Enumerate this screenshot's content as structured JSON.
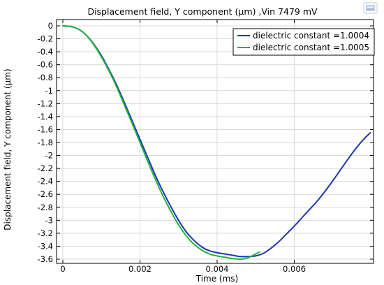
{
  "chart_data": {
    "type": "line",
    "title": "Displacement field, Y component (µm) ,Vin 7479 mV",
    "xlabel": "Time (ms)",
    "ylabel": "Displacement field, Y component (µm)",
    "xlim": [
      0,
      0.008
    ],
    "ylim": [
      -3.6,
      0.0
    ],
    "xticks": [
      0,
      0.002,
      0.004,
      0.006
    ],
    "xtick_labels": [
      "0",
      "0.002",
      "0.004",
      "0.006"
    ],
    "yticks": [
      0,
      -0.2,
      -0.4,
      -0.6,
      -0.8,
      -1,
      -1.2,
      -1.4,
      -1.6,
      -1.8,
      -2,
      -2.2,
      -2.4,
      -2.6,
      -2.8,
      -3,
      -3.2,
      -3.4,
      -3.6
    ],
    "ytick_labels": [
      "0",
      "-0.2",
      "-0.4",
      "-0.6",
      "-0.8",
      "-1",
      "-1.2",
      "-1.4",
      "-1.6",
      "-1.8",
      "-2",
      "-2.2",
      "-2.4",
      "-2.6",
      "-2.8",
      "-3",
      "-3.2",
      "-3.4",
      "-3.6"
    ],
    "grid": true,
    "legend_position": "top-right",
    "series": [
      {
        "name": "dielectric constant =1.0004",
        "color": "#1f35b4",
        "x": [
          0,
          0.0002,
          0.0004,
          0.0006,
          0.0008,
          0.001,
          0.0012,
          0.0014,
          0.0016,
          0.0018,
          0.002,
          0.0022,
          0.0024,
          0.0026,
          0.0028,
          0.003,
          0.0032,
          0.0034,
          0.0036,
          0.0038,
          0.004,
          0.0042,
          0.0044,
          0.0046,
          0.0048,
          0.005,
          0.0052,
          0.0054,
          0.0056,
          0.0058,
          0.006,
          0.0062,
          0.0064,
          0.0066,
          0.0068,
          0.007,
          0.0072,
          0.0074,
          0.0076,
          0.0078,
          0.00797
        ],
        "y": [
          0,
          -0.01,
          -0.05,
          -0.14,
          -0.28,
          -0.46,
          -0.68,
          -0.92,
          -1.19,
          -1.47,
          -1.75,
          -2.03,
          -2.31,
          -2.56,
          -2.79,
          -3.0,
          -3.18,
          -3.31,
          -3.41,
          -3.47,
          -3.5,
          -3.52,
          -3.54,
          -3.56,
          -3.56,
          -3.55,
          -3.51,
          -3.43,
          -3.33,
          -3.21,
          -3.09,
          -2.96,
          -2.83,
          -2.7,
          -2.55,
          -2.39,
          -2.22,
          -2.05,
          -1.89,
          -1.75,
          -1.65
        ]
      },
      {
        "name": "dielectric constant =1.0005",
        "color": "#1fb53a",
        "x": [
          0,
          0.0002,
          0.0004,
          0.0006,
          0.0008,
          0.001,
          0.0012,
          0.0014,
          0.0016,
          0.0018,
          0.002,
          0.0022,
          0.0024,
          0.0026,
          0.0028,
          0.003,
          0.0032,
          0.0034,
          0.0036,
          0.0038,
          0.004,
          0.0042,
          0.0044,
          0.0046,
          0.0048,
          0.005,
          0.0051
        ],
        "y": [
          0,
          -0.01,
          -0.05,
          -0.14,
          -0.29,
          -0.48,
          -0.7,
          -0.95,
          -1.23,
          -1.51,
          -1.8,
          -2.09,
          -2.37,
          -2.63,
          -2.86,
          -3.07,
          -3.24,
          -3.37,
          -3.46,
          -3.52,
          -3.55,
          -3.57,
          -3.59,
          -3.6,
          -3.58,
          -3.52,
          -3.49
        ]
      }
    ]
  }
}
